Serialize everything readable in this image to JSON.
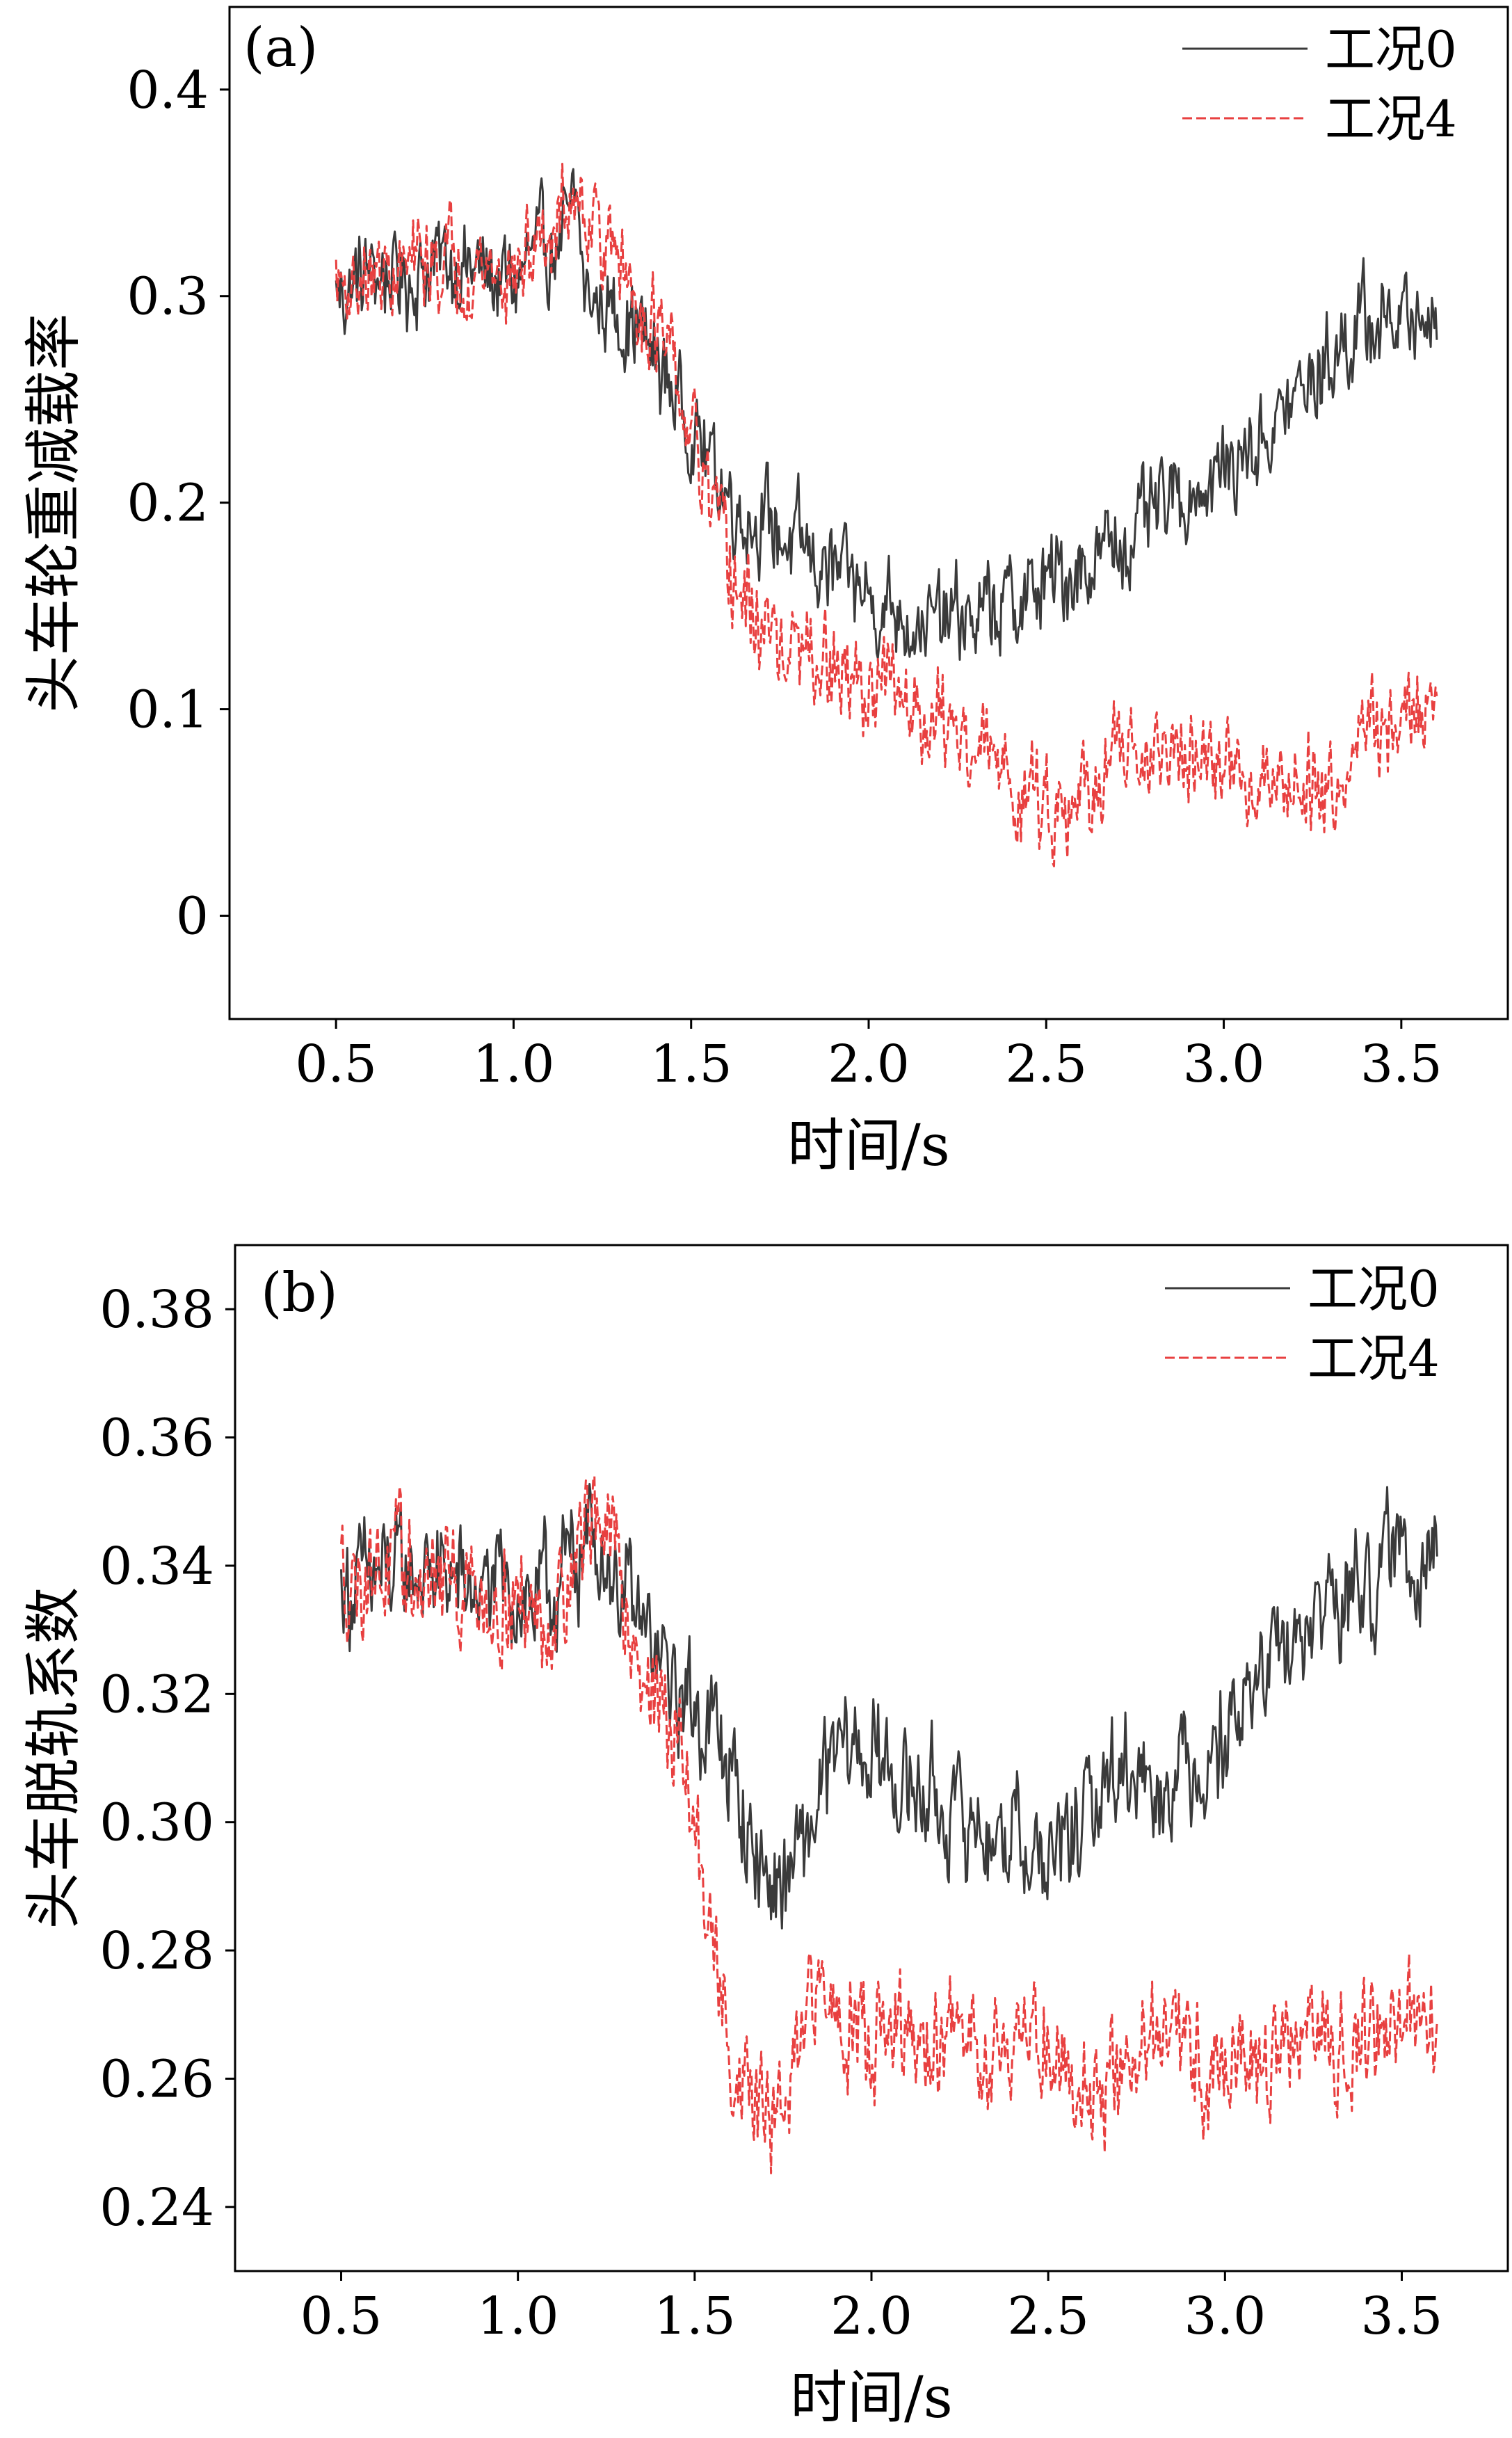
{
  "chart_data": [
    {
      "type": "line",
      "panel_label": "(a)",
      "xlabel": "时间/s",
      "ylabel": "头车轮重减载率",
      "xlim": [
        0.2,
        3.8
      ],
      "ylim": [
        -0.05,
        0.44
      ],
      "xticks": [
        "0.5",
        "1.0",
        "1.5",
        "2.0",
        "2.5",
        "3.0",
        "3.5"
      ],
      "yticks": [
        "0",
        "0.1",
        "0.2",
        "0.3",
        "0.4"
      ],
      "legend_position": "top-right",
      "series": [
        {
          "name": "工况0",
          "color": "#3a3a3a",
          "line_style": "solid",
          "x": [
            0.5,
            0.6,
            0.7,
            0.8,
            0.9,
            1.0,
            1.05,
            1.1,
            1.15,
            1.18,
            1.2,
            1.25,
            1.3,
            1.35,
            1.4,
            1.45,
            1.5,
            1.55,
            1.6,
            1.65,
            1.7,
            1.75,
            1.8,
            1.85,
            1.9,
            1.95,
            2.0,
            2.05,
            2.1,
            2.15,
            2.2,
            2.25,
            2.3,
            2.35,
            2.4,
            2.45,
            2.5,
            2.55,
            2.6,
            2.65,
            2.7,
            2.75,
            2.8,
            2.85,
            2.9,
            2.95,
            3.0,
            3.05,
            3.1,
            3.15,
            3.2,
            3.25,
            3.3,
            3.35,
            3.4,
            3.45,
            3.5,
            3.55,
            3.6
          ],
          "y": [
            0.3,
            0.312,
            0.308,
            0.318,
            0.312,
            0.305,
            0.318,
            0.322,
            0.33,
            0.345,
            0.3,
            0.295,
            0.292,
            0.285,
            0.268,
            0.255,
            0.238,
            0.222,
            0.205,
            0.195,
            0.192,
            0.185,
            0.178,
            0.172,
            0.165,
            0.16,
            0.155,
            0.15,
            0.148,
            0.142,
            0.14,
            0.145,
            0.142,
            0.148,
            0.15,
            0.155,
            0.16,
            0.165,
            0.17,
            0.175,
            0.18,
            0.185,
            0.192,
            0.2,
            0.205,
            0.21,
            0.215,
            0.222,
            0.23,
            0.24,
            0.25,
            0.26,
            0.27,
            0.28,
            0.285,
            0.288,
            0.29,
            0.29,
            0.295
          ]
        },
        {
          "name": "工况4",
          "color": "#e84040",
          "line_style": "dashed",
          "x": [
            0.5,
            0.6,
            0.7,
            0.8,
            0.9,
            1.0,
            1.05,
            1.1,
            1.15,
            1.18,
            1.2,
            1.25,
            1.3,
            1.35,
            1.4,
            1.45,
            1.5,
            1.55,
            1.6,
            1.65,
            1.7,
            1.75,
            1.8,
            1.85,
            1.9,
            1.95,
            2.0,
            2.05,
            2.1,
            2.15,
            2.2,
            2.25,
            2.3,
            2.35,
            2.4,
            2.45,
            2.5,
            2.55,
            2.6,
            2.65,
            2.7,
            2.75,
            2.8,
            2.85,
            2.9,
            2.95,
            3.0,
            3.05,
            3.1,
            3.15,
            3.2,
            3.25,
            3.3,
            3.35,
            3.4,
            3.45,
            3.5,
            3.55,
            3.6
          ],
          "y": [
            0.305,
            0.308,
            0.312,
            0.318,
            0.315,
            0.31,
            0.32,
            0.33,
            0.34,
            0.36,
            0.345,
            0.33,
            0.315,
            0.3,
            0.285,
            0.26,
            0.23,
            0.2,
            0.17,
            0.15,
            0.14,
            0.132,
            0.125,
            0.12,
            0.117,
            0.112,
            0.11,
            0.108,
            0.105,
            0.1,
            0.095,
            0.09,
            0.082,
            0.075,
            0.065,
            0.058,
            0.055,
            0.058,
            0.06,
            0.065,
            0.07,
            0.075,
            0.077,
            0.078,
            0.075,
            0.072,
            0.072,
            0.07,
            0.068,
            0.068,
            0.068,
            0.065,
            0.068,
            0.075,
            0.085,
            0.09,
            0.095,
            0.1,
            0.105
          ]
        }
      ]
    },
    {
      "type": "line",
      "panel_label": "(b)",
      "xlabel": "时间/s",
      "ylabel": "头车脱轨系数",
      "xlim": [
        0.2,
        3.8
      ],
      "ylim": [
        0.23,
        0.39
      ],
      "xticks": [
        "0.5",
        "1.0",
        "1.5",
        "2.0",
        "2.5",
        "3.0",
        "3.5"
      ],
      "yticks": [
        "0.24",
        "0.26",
        "0.28",
        "0.30",
        "0.32",
        "0.34",
        "0.36",
        "0.38"
      ],
      "legend_position": "top-right",
      "series": [
        {
          "name": "工况0",
          "color": "#3a3a3a",
          "line_style": "solid",
          "x": [
            0.5,
            0.6,
            0.7,
            0.8,
            0.9,
            1.0,
            1.05,
            1.1,
            1.15,
            1.2,
            1.25,
            1.3,
            1.35,
            1.4,
            1.45,
            1.5,
            1.55,
            1.6,
            1.65,
            1.7,
            1.75,
            1.8,
            1.85,
            1.9,
            1.95,
            2.0,
            2.05,
            2.1,
            2.15,
            2.2,
            2.25,
            2.3,
            2.35,
            2.4,
            2.45,
            2.5,
            2.55,
            2.6,
            2.65,
            2.7,
            2.75,
            2.8,
            2.85,
            2.9,
            2.95,
            3.0,
            3.05,
            3.1,
            3.15,
            3.2,
            3.25,
            3.3,
            3.35,
            3.4,
            3.45,
            3.5,
            3.55,
            3.6
          ],
          "y": [
            0.336,
            0.338,
            0.339,
            0.338,
            0.336,
            0.336,
            0.334,
            0.336,
            0.34,
            0.345,
            0.342,
            0.335,
            0.33,
            0.325,
            0.32,
            0.318,
            0.315,
            0.308,
            0.298,
            0.292,
            0.29,
            0.295,
            0.302,
            0.31,
            0.312,
            0.31,
            0.308,
            0.305,
            0.305,
            0.302,
            0.3,
            0.3,
            0.298,
            0.298,
            0.296,
            0.293,
            0.296,
            0.3,
            0.305,
            0.308,
            0.31,
            0.305,
            0.308,
            0.31,
            0.31,
            0.315,
            0.318,
            0.322,
            0.325,
            0.328,
            0.332,
            0.335,
            0.335,
            0.337,
            0.34,
            0.342,
            0.343,
            0.345
          ]
        },
        {
          "name": "工况4",
          "color": "#e84040",
          "line_style": "dashed",
          "x": [
            0.5,
            0.6,
            0.7,
            0.8,
            0.9,
            1.0,
            1.05,
            1.1,
            1.15,
            1.2,
            1.22,
            1.25,
            1.3,
            1.35,
            1.4,
            1.45,
            1.5,
            1.55,
            1.6,
            1.65,
            1.7,
            1.75,
            1.8,
            1.85,
            1.9,
            1.95,
            2.0,
            2.05,
            2.1,
            2.15,
            2.2,
            2.25,
            2.3,
            2.35,
            2.4,
            2.45,
            2.5,
            2.55,
            2.6,
            2.65,
            2.7,
            2.75,
            2.8,
            2.85,
            2.9,
            2.95,
            3.0,
            3.05,
            3.1,
            3.15,
            3.2,
            3.25,
            3.3,
            3.35,
            3.4,
            3.45,
            3.5,
            3.55,
            3.6
          ],
          "y": [
            0.338,
            0.34,
            0.338,
            0.337,
            0.336,
            0.335,
            0.332,
            0.333,
            0.34,
            0.348,
            0.35,
            0.345,
            0.335,
            0.325,
            0.318,
            0.312,
            0.3,
            0.28,
            0.265,
            0.258,
            0.254,
            0.255,
            0.262,
            0.275,
            0.272,
            0.27,
            0.268,
            0.266,
            0.265,
            0.264,
            0.265,
            0.266,
            0.266,
            0.267,
            0.266,
            0.268,
            0.266,
            0.262,
            0.26,
            0.258,
            0.26,
            0.265,
            0.266,
            0.264,
            0.263,
            0.262,
            0.262,
            0.263,
            0.262,
            0.264,
            0.265,
            0.266,
            0.265,
            0.266,
            0.267,
            0.268,
            0.268,
            0.268,
            0.27
          ]
        }
      ]
    }
  ]
}
